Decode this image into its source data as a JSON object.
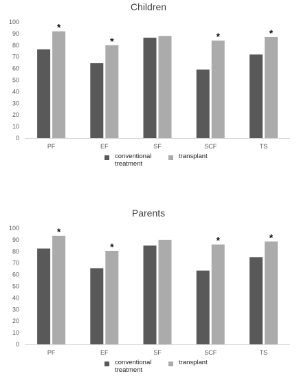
{
  "colors": {
    "conventional": "#595959",
    "transplant": "#ababab",
    "axis": "#d9d9d9",
    "text": "#595959"
  },
  "chart_data": [
    {
      "type": "bar",
      "title": "Children",
      "categories": [
        "PF",
        "EF",
        "SF",
        "SCF",
        "TS"
      ],
      "ylim": [
        0,
        100
      ],
      "yticks": [
        "0",
        "10",
        "20",
        "30",
        "40",
        "50",
        "60",
        "70",
        "80",
        "90",
        "100"
      ],
      "grid": false,
      "legend_position": "bottom",
      "series": [
        {
          "name": "conventional treatment",
          "values": [
            76.5,
            64.5,
            86.5,
            59,
            72
          ]
        },
        {
          "name": "transplant",
          "values": [
            92,
            80,
            88,
            84,
            87
          ]
        }
      ],
      "annotations": [
        "*",
        "*",
        "",
        "*",
        "*"
      ]
    },
    {
      "type": "bar",
      "title": "Parents",
      "categories": [
        "PF",
        "EF",
        "SF",
        "SCF",
        "TS"
      ],
      "ylim": [
        0,
        100
      ],
      "yticks": [
        "0",
        "10",
        "20",
        "30",
        "40",
        "50",
        "60",
        "70",
        "80",
        "90",
        "100"
      ],
      "grid": false,
      "legend_position": "bottom",
      "series": [
        {
          "name": "conventional treatment",
          "values": [
            82.5,
            65.5,
            85,
            63.5,
            75
          ]
        },
        {
          "name": "transplant",
          "values": [
            93.5,
            80.5,
            90,
            86,
            88.5
          ]
        }
      ],
      "annotations": [
        "*",
        "*",
        "",
        "*",
        "*"
      ]
    }
  ]
}
